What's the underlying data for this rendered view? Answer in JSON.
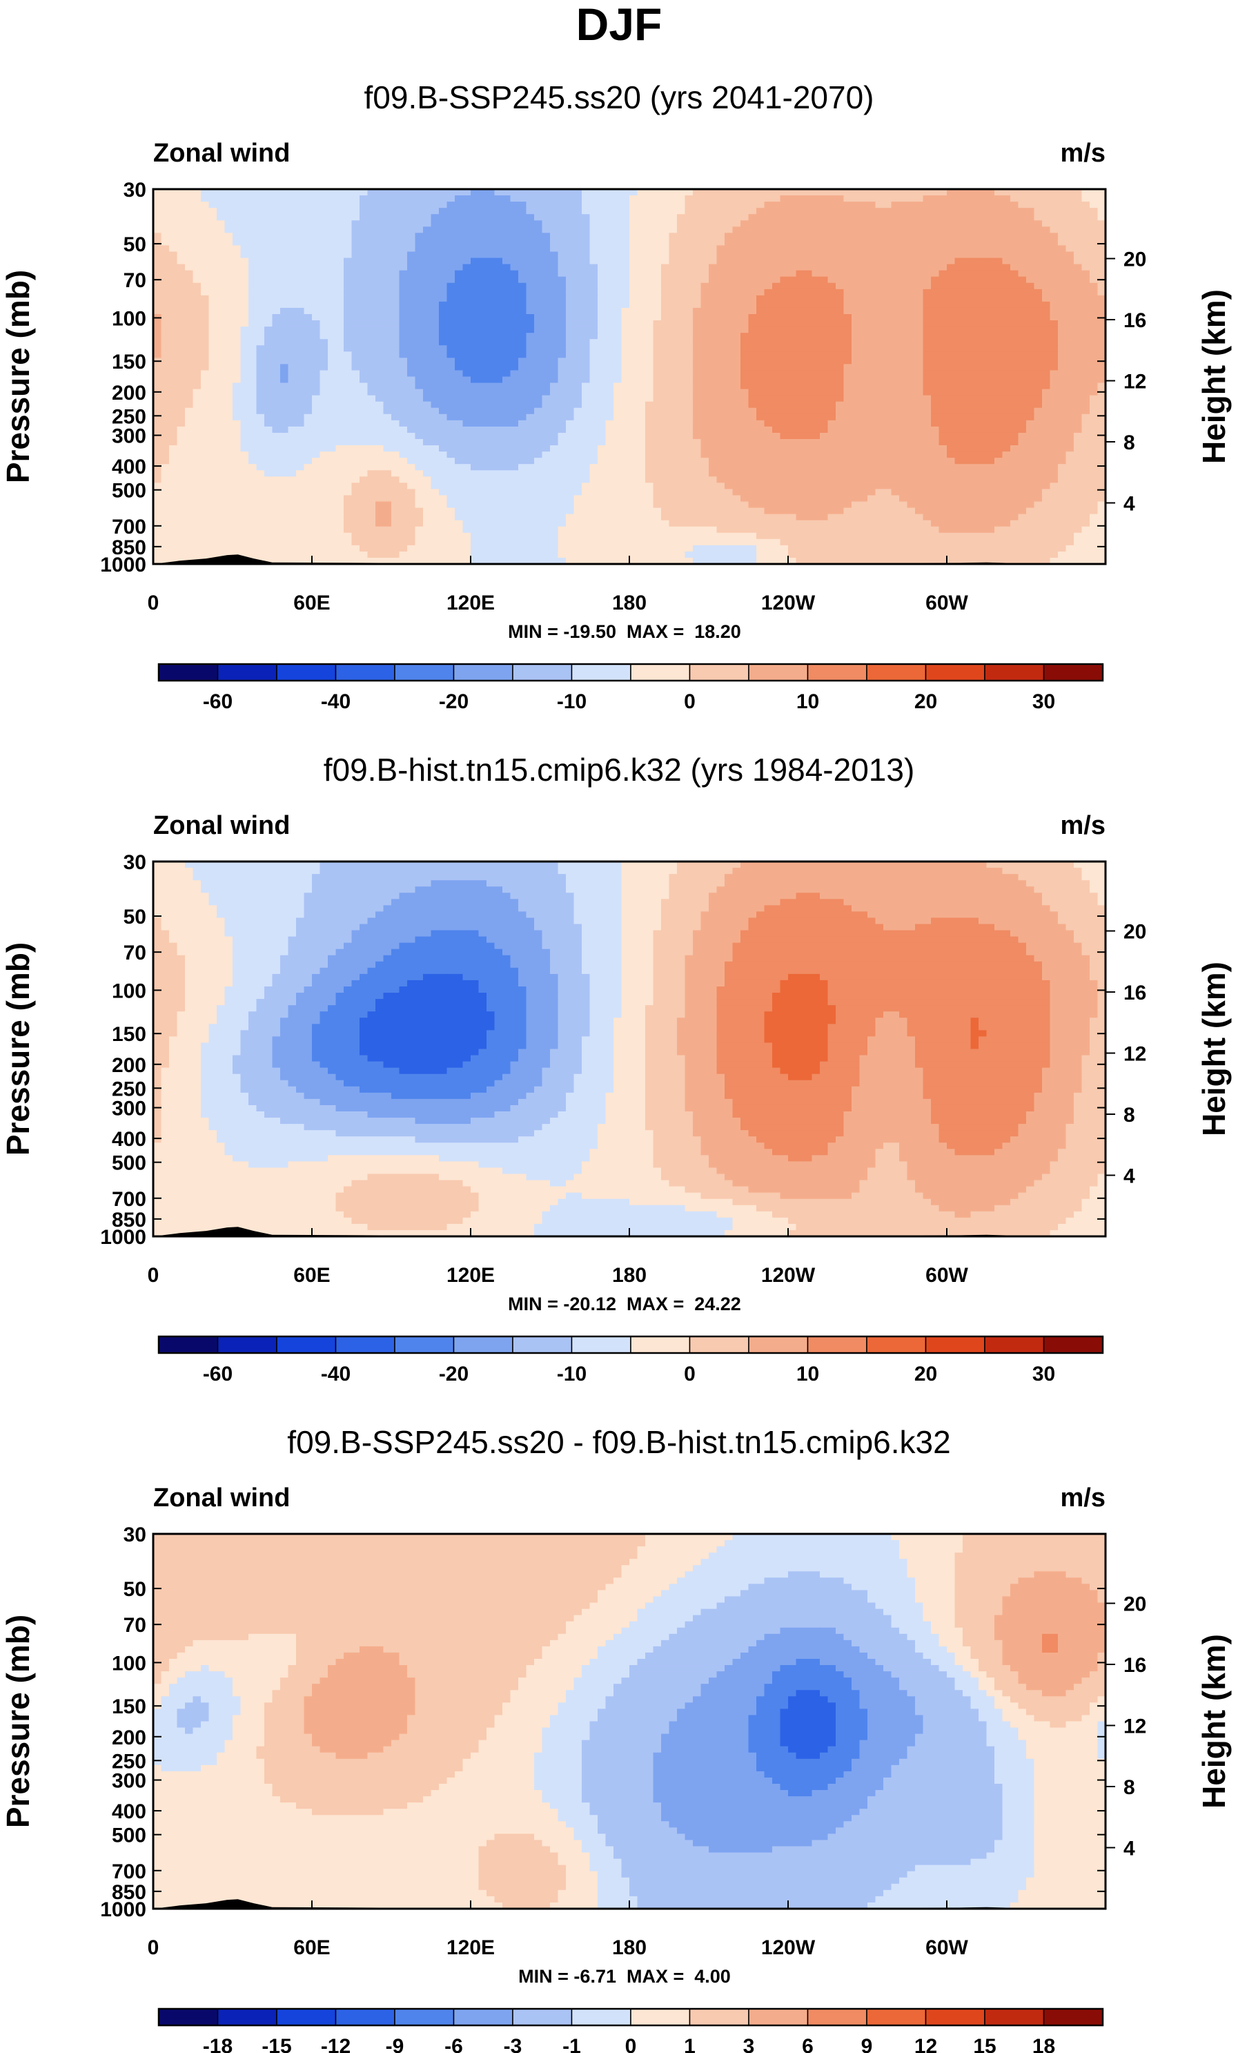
{
  "figure_title": "DJF",
  "colors": {
    "blues": [
      "#08086b",
      "#0a22b8",
      "#1444dc",
      "#2c62e6",
      "#4f84ec",
      "#7ea4f0",
      "#aac3f5",
      "#d2e2fb"
    ],
    "reds": [
      "#fde6d3",
      "#f8cab0",
      "#f4ad8c",
      "#f08b63",
      "#ec6838",
      "#e0461c",
      "#c22a10",
      "#8a0c06"
    ]
  },
  "chart_data": [
    {
      "type": "heatmap",
      "title": "f09.B-SSP245.ss20 (yrs 2041-2070)",
      "left_label": "Zonal wind",
      "right_label": "m/s",
      "ylabel": "Pressure (mb)",
      "ylabel_right": "Height (km)",
      "x_ticks": [
        "0",
        "60E",
        "120E",
        "180",
        "120W",
        "60W"
      ],
      "x_range_deg": [
        0,
        360
      ],
      "y_ticks": [
        30,
        50,
        70,
        100,
        150,
        200,
        250,
        300,
        400,
        500,
        700,
        850,
        1000
      ],
      "y_range_mb": [
        1000,
        30
      ],
      "height_ticks_km": [
        4,
        8,
        12,
        16,
        20
      ],
      "stats": "MIN = -19.50  MAX =  18.20",
      "colorbar_labels": [
        "-60",
        "-40",
        "-20",
        "-10",
        "0",
        "10",
        "20",
        "30"
      ],
      "blobs": [
        {
          "lon": 15,
          "p": 110,
          "rx": 40,
          "ry": 0.35,
          "v": 5
        },
        {
          "lon": 95,
          "p": 620,
          "rx": 70,
          "ry": 0.45,
          "v": 6
        },
        {
          "lon": 88,
          "p": 600,
          "rx": 15,
          "ry": 0.2,
          "v": 9
        },
        {
          "lon": 55,
          "p": 30,
          "rx": 45,
          "ry": 0.7,
          "v": 1
        },
        {
          "lon": 128,
          "p": 120,
          "rx": 42,
          "ry": 0.65,
          "v": -15
        },
        {
          "lon": 48,
          "p": 170,
          "rx": 14,
          "ry": 0.3,
          "v": -10
        },
        {
          "lon": 60,
          "p": 560,
          "rx": 100,
          "ry": 0.55,
          "v": 1.5
        },
        {
          "lon": 168,
          "p": 500,
          "rx": 55,
          "ry": 0.6,
          "v": 1.5
        },
        {
          "lon": 218,
          "p": 900,
          "rx": 20,
          "ry": 0.08,
          "v": -9
        },
        {
          "lon": 239,
          "p": 140,
          "rx": 60,
          "ry": 1.0,
          "v": 20
        },
        {
          "lon": 322,
          "p": 130,
          "rx": 48,
          "ry": 0.95,
          "v": 18
        },
        {
          "lon": 278,
          "p": 200,
          "rx": 18,
          "ry": 0.5,
          "v": -5
        },
        {
          "lon": 300,
          "p": 600,
          "rx": 40,
          "ry": 0.5,
          "v": 2
        }
      ],
      "topography": [
        [
          10,
          970
        ],
        [
          20,
          950
        ],
        [
          28,
          920
        ],
        [
          32,
          915
        ],
        [
          38,
          950
        ],
        [
          45,
          985
        ],
        [
          120,
          995
        ],
        [
          145,
          998
        ],
        [
          305,
          990
        ],
        [
          315,
          985
        ],
        [
          330,
          995
        ]
      ]
    },
    {
      "type": "heatmap",
      "title": "f09.B-hist.tn15.cmip6.k32 (yrs 1984-2013)",
      "left_label": "Zonal wind",
      "right_label": "m/s",
      "ylabel": "Pressure (mb)",
      "ylabel_right": "Height (km)",
      "x_ticks": [
        "0",
        "60E",
        "120E",
        "180",
        "120W",
        "60W"
      ],
      "x_range_deg": [
        0,
        360
      ],
      "y_ticks": [
        30,
        50,
        70,
        100,
        150,
        200,
        250,
        300,
        400,
        500,
        700,
        850,
        1000
      ],
      "y_range_mb": [
        1000,
        30
      ],
      "height_ticks_km": [
        4,
        8,
        12,
        16,
        20
      ],
      "stats": "MIN = -20.12  MAX =  24.22",
      "colorbar_labels": [
        "-60",
        "-40",
        "-20",
        "-10",
        "0",
        "10",
        "20",
        "30"
      ],
      "blobs": [
        {
          "lon": 25,
          "p": 100,
          "rx": 40,
          "ry": 0.3,
          "v": 5
        },
        {
          "lon": 100,
          "p": 640,
          "rx": 70,
          "ry": 0.45,
          "v": 6
        },
        {
          "lon": 100,
          "p": 680,
          "rx": 35,
          "ry": 0.18,
          "v": 9
        },
        {
          "lon": 125,
          "p": 60,
          "rx": 50,
          "ry": 0.5,
          "v": 1
        },
        {
          "lon": 118,
          "p": 125,
          "rx": 45,
          "ry": 0.6,
          "v": -16
        },
        {
          "lon": 70,
          "p": 170,
          "rx": 50,
          "ry": 0.35,
          "v": -12
        },
        {
          "lon": 60,
          "p": 500,
          "rx": 100,
          "ry": 0.6,
          "v": 1.5
        },
        {
          "lon": 210,
          "p": 880,
          "rx": 40,
          "ry": 0.1,
          "v": -8
        },
        {
          "lon": 241,
          "p": 140,
          "rx": 58,
          "ry": 1.0,
          "v": 24
        },
        {
          "lon": 322,
          "p": 140,
          "rx": 48,
          "ry": 0.9,
          "v": 19
        },
        {
          "lon": 278,
          "p": 250,
          "rx": 18,
          "ry": 0.5,
          "v": -8
        },
        {
          "lon": 300,
          "p": 620,
          "rx": 40,
          "ry": 0.5,
          "v": 2
        }
      ],
      "topography": [
        [
          10,
          970
        ],
        [
          20,
          950
        ],
        [
          28,
          920
        ],
        [
          32,
          915
        ],
        [
          38,
          950
        ],
        [
          45,
          985
        ],
        [
          120,
          995
        ],
        [
          145,
          998
        ],
        [
          305,
          990
        ],
        [
          315,
          985
        ],
        [
          330,
          995
        ]
      ]
    },
    {
      "type": "heatmap",
      "title": "f09.B-SSP245.ss20 - f09.B-hist.tn15.cmip6.k32",
      "left_label": "Zonal wind",
      "right_label": "m/s",
      "ylabel": "Pressure (mb)",
      "ylabel_right": "Height (km)",
      "x_ticks": [
        "0",
        "60E",
        "120E",
        "180",
        "120W",
        "60W"
      ],
      "x_range_deg": [
        0,
        360
      ],
      "y_ticks": [
        30,
        50,
        70,
        100,
        150,
        200,
        250,
        300,
        400,
        500,
        700,
        850,
        1000
      ],
      "y_range_mb": [
        1000,
        30
      ],
      "height_ticks_km": [
        4,
        8,
        12,
        16,
        20
      ],
      "stats": "MIN = -6.71  MAX =  4.00",
      "colorbar_labels": [
        "-18",
        "-15",
        "-12",
        "-9",
        "-6",
        "-3",
        "-1",
        "0",
        "1",
        "3",
        "6",
        "9",
        "12",
        "15",
        "18"
      ],
      "blobs": [
        {
          "lon": 120,
          "p": 30,
          "rx": 90,
          "ry": 0.5,
          "v": 2
        },
        {
          "lon": 330,
          "p": 80,
          "rx": 40,
          "ry": 0.5,
          "v": 2.5
        },
        {
          "lon": 340,
          "p": 90,
          "rx": 20,
          "ry": 0.25,
          "v": 4
        },
        {
          "lon": 80,
          "p": 250,
          "rx": 60,
          "ry": 0.7,
          "v": 2
        },
        {
          "lon": 75,
          "p": 150,
          "rx": 20,
          "ry": 0.2,
          "v": 4
        },
        {
          "lon": 15,
          "p": 150,
          "rx": 20,
          "ry": 0.25,
          "v": -2
        },
        {
          "lon": 55,
          "p": 100,
          "rx": 20,
          "ry": 0.2,
          "v": -1.5
        },
        {
          "lon": 240,
          "p": 210,
          "rx": 70,
          "ry": 0.8,
          "v": -3.5
        },
        {
          "lon": 248,
          "p": 180,
          "rx": 20,
          "ry": 0.3,
          "v": -6.5
        },
        {
          "lon": 300,
          "p": 160,
          "rx": 70,
          "ry": 0.25,
          "v": -2
        },
        {
          "lon": 90,
          "p": 600,
          "rx": 80,
          "ry": 0.5,
          "v": -1.5
        },
        {
          "lon": 145,
          "p": 700,
          "rx": 30,
          "ry": 0.25,
          "v": 2
        },
        {
          "lon": 200,
          "p": 360,
          "rx": 40,
          "ry": 0.5,
          "v": -1.5
        },
        {
          "lon": 310,
          "p": 420,
          "rx": 15,
          "ry": 0.2,
          "v": -1.5
        }
      ],
      "topography": [
        [
          10,
          970
        ],
        [
          20,
          950
        ],
        [
          28,
          920
        ],
        [
          32,
          915
        ],
        [
          38,
          950
        ],
        [
          45,
          985
        ],
        [
          120,
          995
        ],
        [
          145,
          998
        ],
        [
          305,
          990
        ],
        [
          315,
          985
        ],
        [
          330,
          995
        ]
      ]
    }
  ]
}
